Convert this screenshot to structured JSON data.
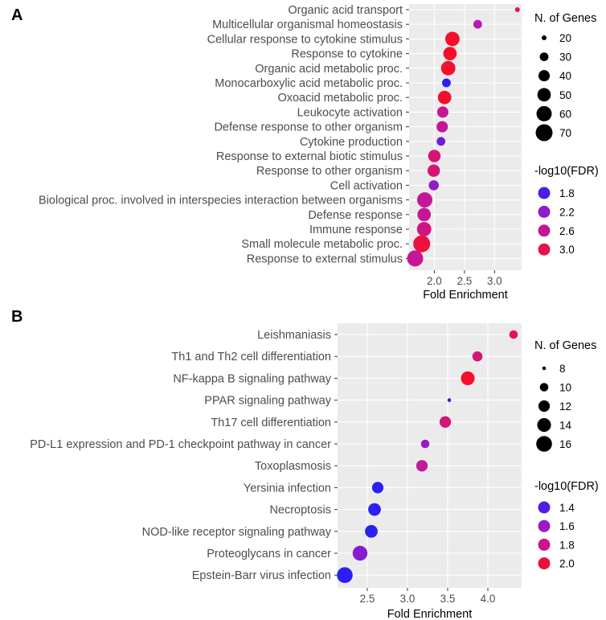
{
  "chart_data": [
    {
      "panel": "A",
      "type": "scatter",
      "xlabel": "Fold Enrichment",
      "xticks": [
        2.0,
        2.5,
        3.0
      ],
      "xtick_labels": [
        "2.0",
        "2.5",
        "3.0"
      ],
      "xlim": [
        1.58,
        3.45
      ],
      "categories": [
        "Organic acid transport",
        "Multicellular organismal homeostasis",
        "Cellular response to cytokine stimulus",
        "Response to cytokine",
        "Organic acid metabolic proc.",
        "Monocarboxylic acid metabolic proc.",
        "Oxoacid metabolic proc.",
        "Leukocyte activation",
        "Defense response to other organism",
        "Cytokine production",
        "Response to external biotic stimulus",
        "Response to other organism",
        "Cell activation",
        "Biological proc. involved in interspecies interaction between organisms",
        "Defense response",
        "Immune response",
        "Small molecule metabolic proc.",
        "Response to external stimulus"
      ],
      "fold_enrichment": [
        3.38,
        2.72,
        2.3,
        2.26,
        2.23,
        2.2,
        2.17,
        2.14,
        2.13,
        2.11,
        2.0,
        1.99,
        1.99,
        1.84,
        1.83,
        1.83,
        1.79,
        1.68
      ],
      "n_genes": [
        15,
        30,
        55,
        50,
        55,
        30,
        50,
        40,
        40,
        30,
        45,
        45,
        35,
        60,
        50,
        55,
        70,
        65
      ],
      "neg_log10_fdr": [
        2.9,
        2.4,
        3.2,
        3.2,
        3.2,
        1.6,
        3.2,
        2.6,
        2.6,
        2.0,
        2.8,
        2.8,
        2.2,
        2.6,
        2.6,
        2.7,
        3.1,
        2.6
      ],
      "size_legend": {
        "title": "N. of Genes",
        "values": [
          20,
          30,
          40,
          50,
          60,
          70
        ],
        "labels": [
          "20",
          "30",
          "40",
          "50",
          "60",
          "70"
        ]
      },
      "color_legend": {
        "title": "-log10(FDR)",
        "values": [
          1.8,
          2.2,
          2.6,
          3.0
        ],
        "labels": [
          "1.8",
          "2.2",
          "2.6",
          "3.0"
        ]
      }
    },
    {
      "panel": "B",
      "type": "scatter",
      "xlabel": "Fold Enrichment",
      "xticks": [
        2.5,
        3.0,
        3.5,
        4.0
      ],
      "xtick_labels": [
        "2.5",
        "3.0",
        "3.5",
        "4.0"
      ],
      "xlim": [
        2.13,
        4.42
      ],
      "categories": [
        "Leishmaniasis",
        "Th1 and Th2 cell differentiation",
        "NF-kappa B signaling pathway",
        "PPAR signaling pathway",
        "Th17 cell differentiation",
        "PD-L1 expression and PD-1 checkpoint pathway in cancer",
        "Toxoplasmosis",
        "Yersinia infection",
        "Necroptosis",
        "NOD-like receptor signaling pathway",
        "Proteoglycans in cancer",
        "Epstein-Barr virus infection"
      ],
      "fold_enrichment": [
        4.32,
        3.87,
        3.75,
        3.52,
        3.47,
        3.22,
        3.18,
        2.63,
        2.59,
        2.55,
        2.41,
        2.22
      ],
      "n_genes": [
        10,
        11,
        14,
        7,
        12,
        10,
        12,
        12,
        13,
        13,
        15,
        16
      ],
      "neg_log10_fdr": [
        1.95,
        1.85,
        2.05,
        1.3,
        1.85,
        1.6,
        1.75,
        1.3,
        1.3,
        1.3,
        1.55,
        1.3
      ],
      "size_legend": {
        "title": "N. of Genes",
        "values": [
          8,
          10,
          12,
          14,
          16
        ],
        "labels": [
          "8",
          "10",
          "12",
          "14",
          "16"
        ]
      },
      "color_legend": {
        "title": "-log10(FDR)",
        "values": [
          1.4,
          1.6,
          1.8,
          2.0
        ],
        "labels": [
          "1.4",
          "1.6",
          "1.8",
          "2.0"
        ]
      }
    }
  ],
  "panel_labels": [
    "A",
    "B"
  ],
  "colors": {
    "panel_background": "#ebebeb",
    "grid": "#ffffff",
    "low": "#2a1ff5",
    "mid": "#b51ab8",
    "high": "#f50f2a"
  }
}
